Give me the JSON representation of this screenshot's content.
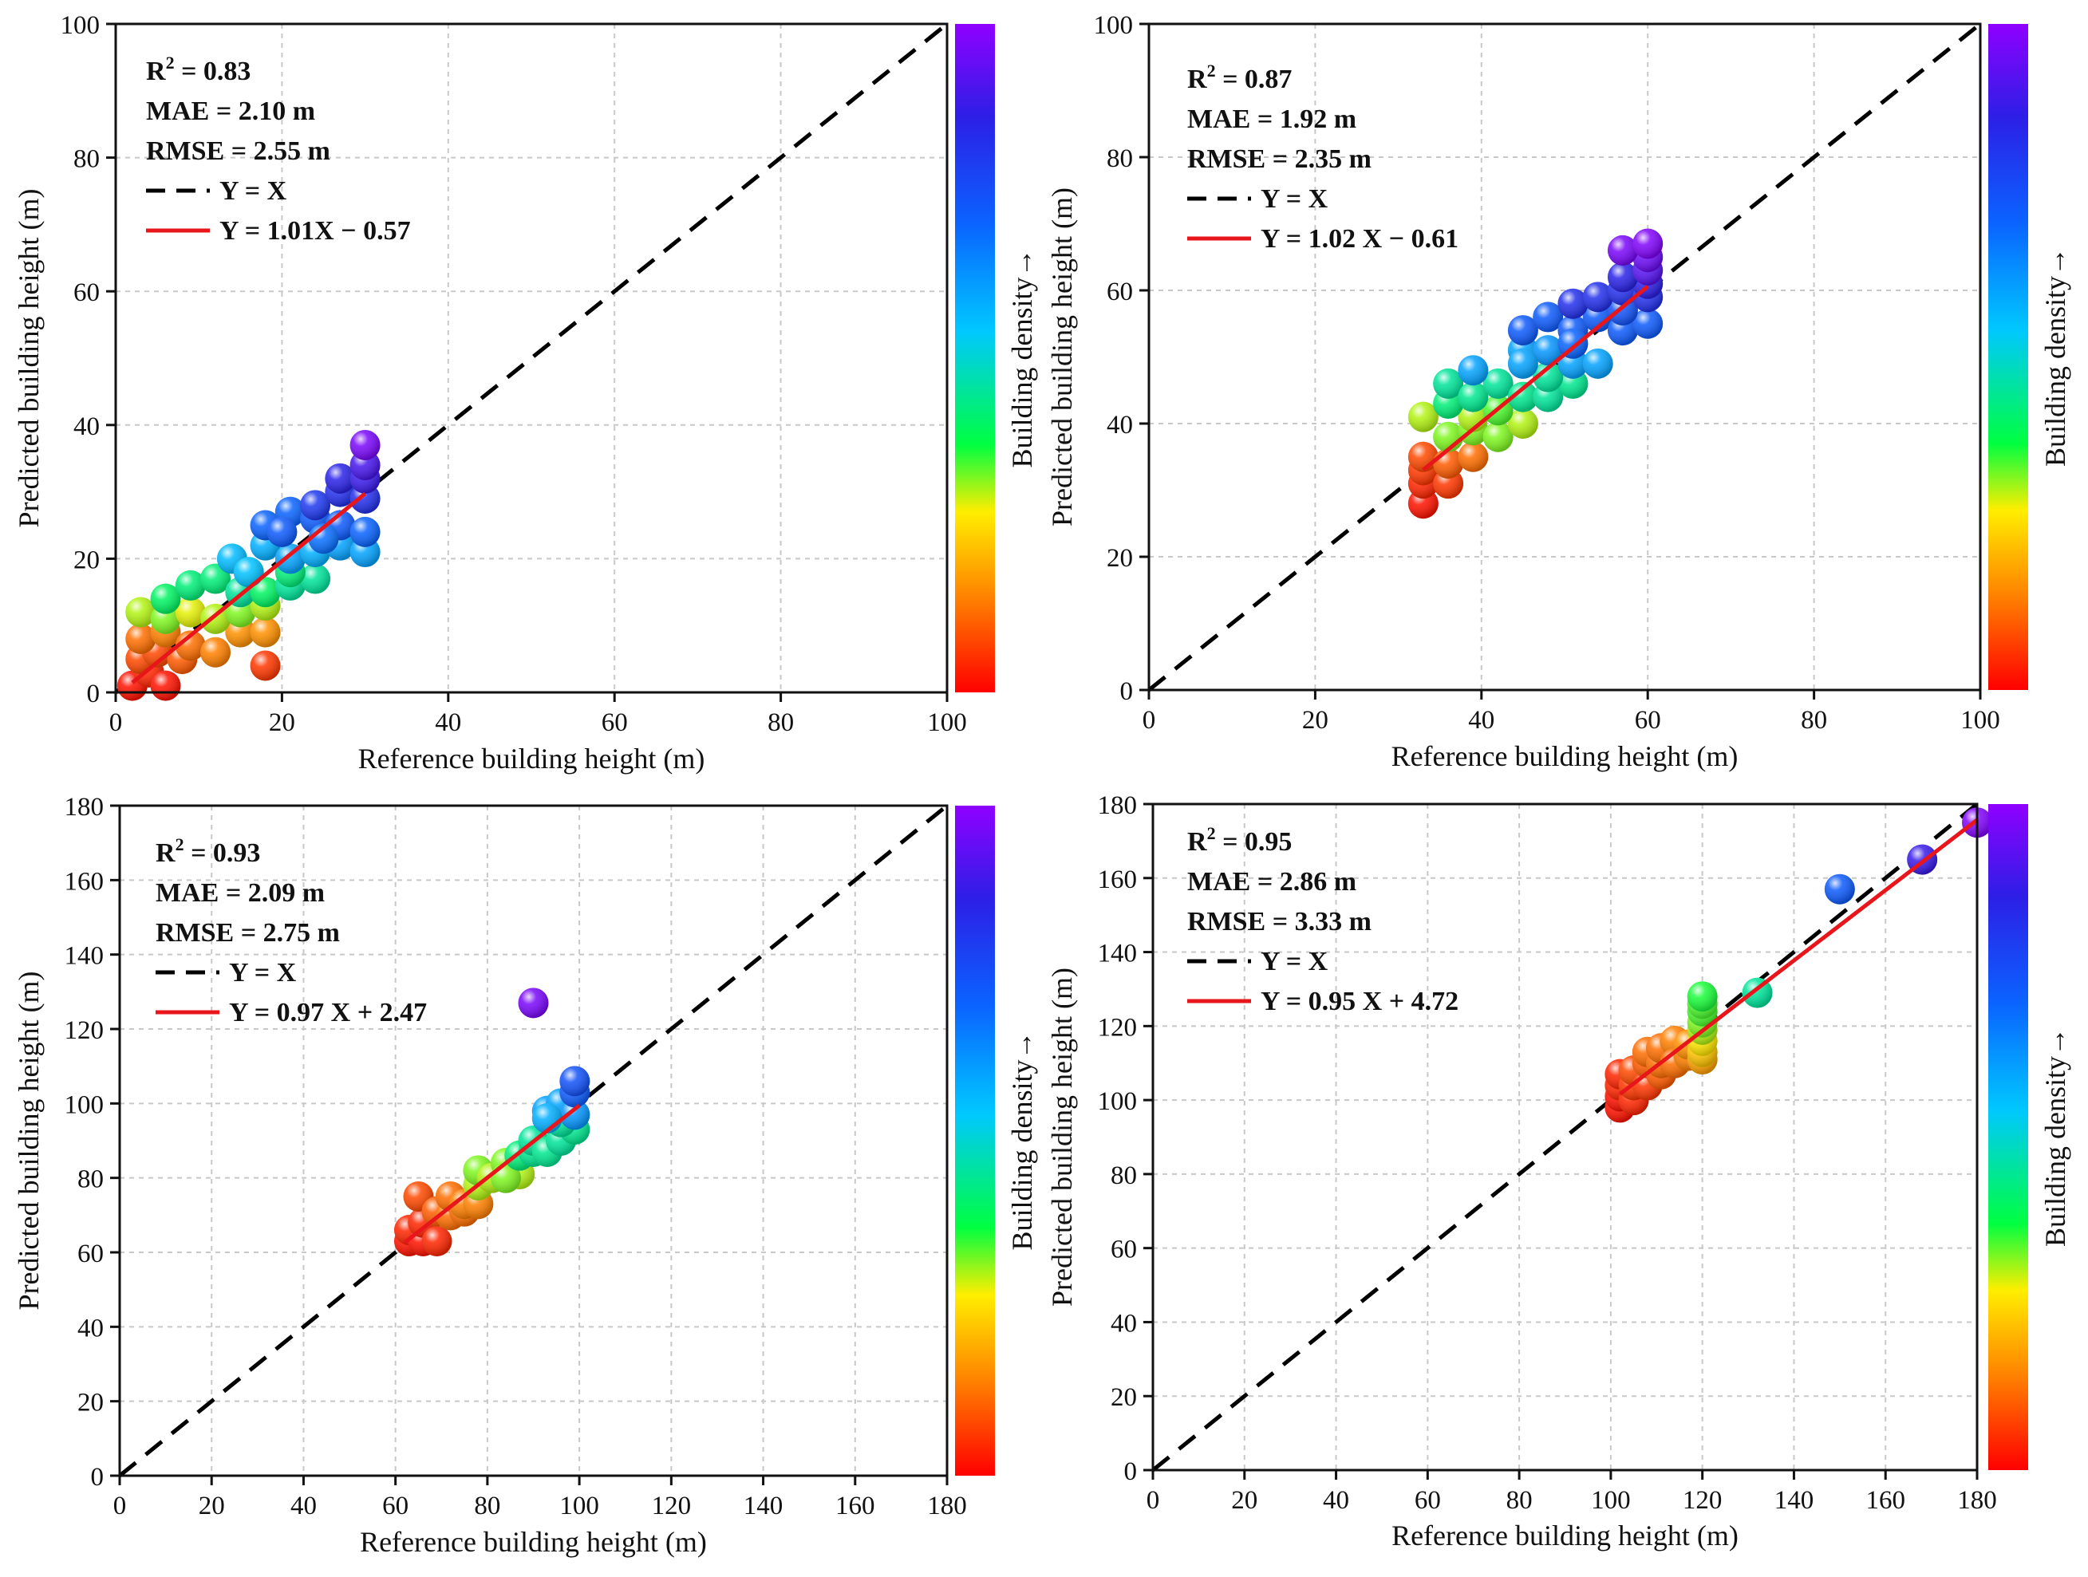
{
  "figure": {
    "colorbar_label": "Building density→",
    "colors": {
      "identity_line": "#000000",
      "fit_line": "#e8161b",
      "grid": "#c8c8c8",
      "colorbar": [
        "#8f00ff",
        "#2c1fe6",
        "#0a64ff",
        "#00c8ff",
        "#00ff40",
        "#ffee00",
        "#ff8000",
        "#ff0000"
      ]
    }
  },
  "chart_data": [
    {
      "type": "scatter",
      "id": "panel_a",
      "xlabel": "Reference building height (m)",
      "ylabel": "Predicted building height (m)",
      "xlim": [
        0,
        100
      ],
      "ylim": [
        0,
        100
      ],
      "ticks": [
        0,
        20,
        40,
        60,
        80,
        100
      ],
      "grid": true,
      "legend_position": "top-left",
      "stats": {
        "r2_prefix": "R",
        "r2_sup": "2",
        "r2_rest": " = 0.83",
        "mae": "MAE = 2.10 m",
        "rmse": "RMSE = 2.55 m"
      },
      "legend": {
        "identity": "Y = X",
        "fit": "Y = 1.01X − 0.57"
      },
      "fit": {
        "slope": 1.01,
        "intercept": -0.57,
        "x_range": [
          2,
          30
        ]
      },
      "identity_range": [
        0,
        100
      ],
      "points": [
        [
          2,
          1,
          0.02
        ],
        [
          4,
          3,
          0.04
        ],
        [
          6,
          1,
          0.02
        ],
        [
          3,
          5,
          0.08
        ],
        [
          5,
          6,
          0.08
        ],
        [
          8,
          5,
          0.1
        ],
        [
          3,
          8,
          0.12
        ],
        [
          6,
          9,
          0.14
        ],
        [
          9,
          7,
          0.12
        ],
        [
          12,
          6,
          0.14
        ],
        [
          15,
          9,
          0.16
        ],
        [
          18,
          9,
          0.16
        ],
        [
          18,
          4,
          0.06
        ],
        [
          3,
          12,
          0.3
        ],
        [
          6,
          11,
          0.32
        ],
        [
          9,
          12,
          0.28
        ],
        [
          12,
          11,
          0.3
        ],
        [
          15,
          12,
          0.32
        ],
        [
          18,
          13,
          0.3
        ],
        [
          6,
          14,
          0.4
        ],
        [
          9,
          16,
          0.42
        ],
        [
          12,
          17,
          0.42
        ],
        [
          15,
          15,
          0.45
        ],
        [
          18,
          15,
          0.4
        ],
        [
          21,
          16,
          0.45
        ],
        [
          24,
          17,
          0.45
        ],
        [
          21,
          18,
          0.42
        ],
        [
          14,
          20,
          0.56
        ],
        [
          18,
          22,
          0.58
        ],
        [
          21,
          20,
          0.6
        ],
        [
          24,
          21,
          0.58
        ],
        [
          27,
          22,
          0.6
        ],
        [
          30,
          21,
          0.6
        ],
        [
          16,
          18,
          0.55
        ],
        [
          18,
          25,
          0.7
        ],
        [
          21,
          27,
          0.7
        ],
        [
          24,
          26,
          0.72
        ],
        [
          27,
          25,
          0.72
        ],
        [
          30,
          24,
          0.7
        ],
        [
          20,
          24,
          0.72
        ],
        [
          25,
          23,
          0.68
        ],
        [
          24,
          28,
          0.8
        ],
        [
          27,
          30,
          0.82
        ],
        [
          30,
          29,
          0.82
        ],
        [
          27,
          32,
          0.85
        ],
        [
          30,
          32,
          0.88
        ],
        [
          30,
          34,
          0.9
        ],
        [
          30,
          37,
          0.97
        ]
      ]
    },
    {
      "type": "scatter",
      "id": "panel_b",
      "xlabel": "Reference building height (m)",
      "ylabel": "Predicted building height (m)",
      "xlim": [
        0,
        100
      ],
      "ylim": [
        0,
        100
      ],
      "ticks": [
        0,
        20,
        40,
        60,
        80,
        100
      ],
      "grid": true,
      "legend_position": "top-left",
      "stats": {
        "r2_prefix": "R",
        "r2_sup": "2",
        "r2_rest": " = 0.87",
        "mae": "MAE = 1.92 m",
        "rmse": "RMSE = 2.35 m"
      },
      "legend": {
        "identity": "Y = X",
        "fit": "Y = 1.02 X − 0.61"
      },
      "fit": {
        "slope": 1.02,
        "intercept": -0.61,
        "x_range": [
          33,
          60
        ]
      },
      "identity_range": [
        0,
        100
      ],
      "points": [
        [
          33,
          28,
          0.02
        ],
        [
          33,
          31,
          0.04
        ],
        [
          33,
          33,
          0.06
        ],
        [
          33,
          35,
          0.08
        ],
        [
          36,
          31,
          0.06
        ],
        [
          36,
          34,
          0.1
        ],
        [
          39,
          35,
          0.12
        ],
        [
          33,
          41,
          0.3
        ],
        [
          36,
          38,
          0.32
        ],
        [
          39,
          39,
          0.32
        ],
        [
          39,
          41,
          0.3
        ],
        [
          42,
          38,
          0.32
        ],
        [
          45,
          40,
          0.3
        ],
        [
          42,
          42,
          0.34
        ],
        [
          36,
          43,
          0.42
        ],
        [
          36,
          46,
          0.45
        ],
        [
          39,
          44,
          0.44
        ],
        [
          42,
          46,
          0.45
        ],
        [
          45,
          44,
          0.44
        ],
        [
          48,
          44,
          0.45
        ],
        [
          51,
          46,
          0.44
        ],
        [
          48,
          47,
          0.45
        ],
        [
          39,
          48,
          0.6
        ],
        [
          45,
          51,
          0.6
        ],
        [
          48,
          51,
          0.62
        ],
        [
          51,
          49,
          0.6
        ],
        [
          54,
          49,
          0.6
        ],
        [
          45,
          49,
          0.6
        ],
        [
          45,
          54,
          0.72
        ],
        [
          48,
          56,
          0.72
        ],
        [
          51,
          54,
          0.72
        ],
        [
          54,
          56,
          0.72
        ],
        [
          57,
          54,
          0.72
        ],
        [
          60,
          55,
          0.72
        ],
        [
          57,
          57,
          0.74
        ],
        [
          51,
          52,
          0.7
        ],
        [
          51,
          58,
          0.82
        ],
        [
          54,
          59,
          0.82
        ],
        [
          57,
          60,
          0.82
        ],
        [
          60,
          59,
          0.82
        ],
        [
          60,
          61,
          0.86
        ],
        [
          57,
          62,
          0.85
        ],
        [
          60,
          63,
          0.92
        ],
        [
          60,
          65,
          0.95
        ],
        [
          57,
          66,
          0.97
        ],
        [
          60,
          67,
          0.98
        ]
      ]
    },
    {
      "type": "scatter",
      "id": "panel_c",
      "xlabel": "Reference building height (m)",
      "ylabel": "Predicted building height (m)",
      "xlim": [
        0,
        180
      ],
      "ylim": [
        0,
        180
      ],
      "ticks": [
        0,
        20,
        40,
        60,
        80,
        100,
        120,
        140,
        160,
        180
      ],
      "grid": true,
      "legend_position": "top-left",
      "stats": {
        "r2_prefix": "R",
        "r2_sup": "2",
        "r2_rest": " = 0.93",
        "mae": "MAE = 2.09 m",
        "rmse": "RMSE = 2.75 m"
      },
      "legend": {
        "identity": "Y = X",
        "fit": "Y = 0.97 X + 2.47"
      },
      "fit": {
        "slope": 0.97,
        "intercept": 2.47,
        "x_range": [
          62,
          100
        ]
      },
      "identity_range": [
        0,
        180
      ],
      "points": [
        [
          63,
          63,
          0.02
        ],
        [
          63,
          66,
          0.04
        ],
        [
          66,
          63,
          0.02
        ],
        [
          66,
          68,
          0.04
        ],
        [
          69,
          63,
          0.04
        ],
        [
          65,
          75,
          0.08
        ],
        [
          69,
          71,
          0.1
        ],
        [
          72,
          70,
          0.12
        ],
        [
          72,
          75,
          0.12
        ],
        [
          75,
          71,
          0.12
        ],
        [
          75,
          73,
          0.14
        ],
        [
          78,
          73,
          0.14
        ],
        [
          78,
          78,
          0.3
        ],
        [
          78,
          82,
          0.32
        ],
        [
          81,
          80,
          0.3
        ],
        [
          84,
          84,
          0.32
        ],
        [
          87,
          81,
          0.3
        ],
        [
          84,
          80,
          0.32
        ],
        [
          87,
          86,
          0.42
        ],
        [
          90,
          87,
          0.44
        ],
        [
          90,
          90,
          0.45
        ],
        [
          93,
          87,
          0.44
        ],
        [
          96,
          90,
          0.45
        ],
        [
          99,
          93,
          0.44
        ],
        [
          96,
          95,
          0.45
        ],
        [
          93,
          98,
          0.6
        ],
        [
          96,
          100,
          0.6
        ],
        [
          99,
          97,
          0.62
        ],
        [
          93,
          96,
          0.58
        ],
        [
          99,
          103,
          0.72
        ],
        [
          99,
          106,
          0.74
        ],
        [
          90,
          127,
          0.97
        ]
      ]
    },
    {
      "type": "scatter",
      "id": "panel_d",
      "xlabel": "Reference building height (m)",
      "ylabel": "Predicted building height (m)",
      "xlim": [
        0,
        180
      ],
      "ylim": [
        0,
        180
      ],
      "ticks": [
        0,
        20,
        40,
        60,
        80,
        100,
        120,
        140,
        160,
        180
      ],
      "grid": true,
      "legend_position": "top-left",
      "stats": {
        "r2_prefix": "R",
        "r2_sup": "2",
        "r2_rest": " = 0.95",
        "mae": "MAE = 2.86 m",
        "rmse": "RMSE = 3.33 m"
      },
      "legend": {
        "identity": "Y = X",
        "fit": "Y = 0.95 X + 4.72"
      },
      "fit": {
        "slope": 0.95,
        "intercept": 4.72,
        "x_range": [
          102,
          180
        ]
      },
      "identity_range": [
        0,
        180
      ],
      "points": [
        [
          102,
          98,
          0.02
        ],
        [
          102,
          101,
          0.02
        ],
        [
          102,
          104,
          0.04
        ],
        [
          102,
          107,
          0.04
        ],
        [
          105,
          100,
          0.04
        ],
        [
          105,
          104,
          0.06
        ],
        [
          105,
          108,
          0.08
        ],
        [
          108,
          104,
          0.06
        ],
        [
          108,
          110,
          0.1
        ],
        [
          108,
          113,
          0.12
        ],
        [
          111,
          107,
          0.1
        ],
        [
          111,
          110,
          0.12
        ],
        [
          111,
          114,
          0.12
        ],
        [
          114,
          116,
          0.14
        ],
        [
          114,
          110,
          0.12
        ],
        [
          117,
          112,
          0.14
        ],
        [
          117,
          115,
          0.16
        ],
        [
          120,
          111,
          0.18
        ],
        [
          120,
          113,
          0.22
        ],
        [
          120,
          116,
          0.26
        ],
        [
          120,
          119,
          0.3
        ],
        [
          120,
          121,
          0.32
        ],
        [
          120,
          124,
          0.34
        ],
        [
          120,
          126,
          0.34
        ],
        [
          120,
          128,
          0.36
        ],
        [
          132,
          129,
          0.45
        ],
        [
          150,
          157,
          0.72
        ],
        [
          168,
          165,
          0.88
        ],
        [
          180,
          175,
          0.98
        ]
      ]
    }
  ]
}
